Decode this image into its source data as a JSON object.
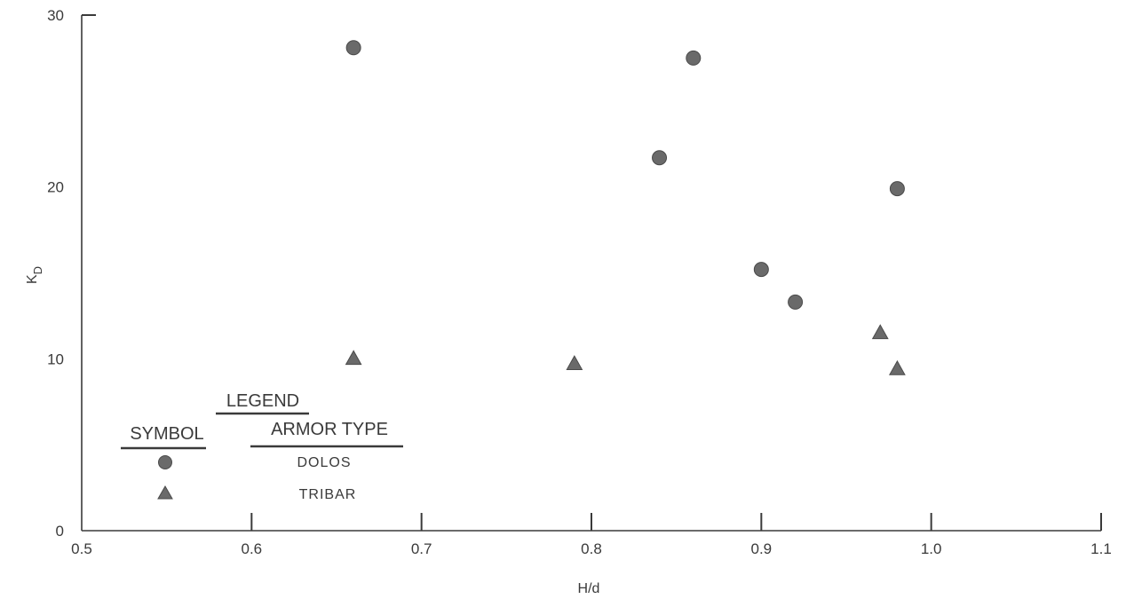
{
  "chart_data": {
    "type": "scatter",
    "title": "",
    "xlabel": "H/d",
    "ylabel_main": "K",
    "ylabel_sub": "D",
    "xlim": [
      0.5,
      1.1
    ],
    "ylim": [
      0,
      30
    ],
    "x_ticks": [
      "0.5",
      "0.6",
      "0.7",
      "0.8",
      "0.9",
      "1.0",
      "1.1"
    ],
    "x_tick_values": [
      0.5,
      0.6,
      0.7,
      0.8,
      0.9,
      1.0,
      1.1
    ],
    "y_ticks": [
      "0",
      "10",
      "20",
      "30"
    ],
    "y_tick_values": [
      0,
      10,
      20,
      30
    ],
    "grid": false,
    "legend": {
      "position": "bottom-left",
      "title": "LEGEND",
      "symbol_header": "SYMBOL",
      "type_header": "ARMOR TYPE"
    },
    "series": [
      {
        "name": "DOLOS",
        "marker": "circle",
        "color": "#6a6a6a",
        "points": [
          {
            "x": 0.66,
            "y": 28.1
          },
          {
            "x": 0.86,
            "y": 27.5
          },
          {
            "x": 0.84,
            "y": 21.7
          },
          {
            "x": 0.98,
            "y": 19.9
          },
          {
            "x": 0.9,
            "y": 15.2
          },
          {
            "x": 0.92,
            "y": 13.3
          }
        ]
      },
      {
        "name": "TRIBAR",
        "marker": "triangle",
        "color": "#6a6a6a",
        "points": [
          {
            "x": 0.66,
            "y": 10.0
          },
          {
            "x": 0.79,
            "y": 9.7
          },
          {
            "x": 0.97,
            "y": 11.5
          },
          {
            "x": 0.98,
            "y": 9.4
          }
        ]
      }
    ]
  }
}
